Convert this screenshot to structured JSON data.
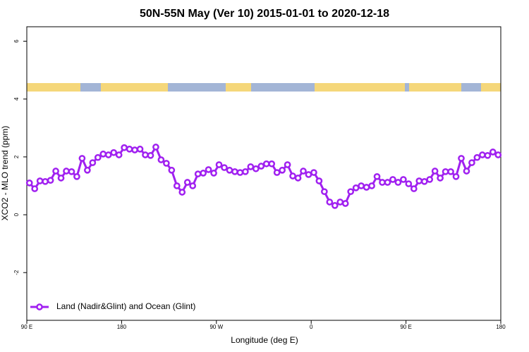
{
  "chart_data": {
    "type": "line",
    "title": "50N-55N May (Ver 10)   2015-01-01 to 2020-12-18",
    "x_label": "Longitude (deg E)",
    "y_label": "XCO2 - MLO trend (ppm)",
    "xlim": [
      90,
      540
    ],
    "xticks": [
      {
        "value": 90,
        "label": "90 E"
      },
      180,
      {
        "value": 270,
        "label": "90 W"
      },
      {
        "value": 360,
        "label": "0"
      },
      {
        "value": 450,
        "label": "90 E"
      },
      {
        "value": 540,
        "label": "180"
      }
    ],
    "ylim": [
      -3.65,
      6.5
    ],
    "yticks": [
      -2,
      0,
      2,
      4,
      6
    ],
    "grid": false,
    "legend": "bottom-left",
    "series": [
      {
        "name": "Land (Nadir&Glint) and Ocean (Glint)",
        "color": "#a020f0",
        "x": [
          92.5,
          97.5,
          102.5,
          107.5,
          112.5,
          117.5,
          122.5,
          127.5,
          132.5,
          137.5,
          142.5,
          147.5,
          152.5,
          157.5,
          162.5,
          167.5,
          172.5,
          177.5,
          182.5,
          187.5,
          192.5,
          197.5,
          202.5,
          207.5,
          212.5,
          217.5,
          222.5,
          227.5,
          232.5,
          237.5,
          242.5,
          247.5,
          252.5,
          257.5,
          262.5,
          267.5,
          272.5,
          277.5,
          282.5,
          287.5,
          292.5,
          297.5,
          302.5,
          307.5,
          312.5,
          317.5,
          322.5,
          327.5,
          332.5,
          337.5,
          342.5,
          347.5,
          352.5,
          357.5,
          362.5,
          367.5,
          372.5,
          377.5,
          382.5,
          387.5,
          392.5,
          397.5,
          402.5,
          407.5,
          412.5,
          417.5,
          422.5,
          427.5,
          432.5,
          437.5,
          442.5,
          447.5,
          452.5,
          457.5,
          462.5,
          467.5,
          472.5,
          477.5,
          482.5,
          487.5,
          492.5,
          497.5,
          502.5,
          507.5,
          512.5,
          517.5,
          522.5,
          527.5,
          532.5,
          537.5
        ],
        "values": [
          1.1,
          0.9,
          1.17,
          1.15,
          1.19,
          1.51,
          1.27,
          1.51,
          1.49,
          1.32,
          1.95,
          1.54,
          1.8,
          1.98,
          2.1,
          2.07,
          2.15,
          2.07,
          2.32,
          2.27,
          2.24,
          2.27,
          2.07,
          2.05,
          2.34,
          1.9,
          1.78,
          1.54,
          1.0,
          0.78,
          1.12,
          1.0,
          1.41,
          1.44,
          1.56,
          1.44,
          1.73,
          1.63,
          1.54,
          1.49,
          1.46,
          1.49,
          1.66,
          1.59,
          1.68,
          1.76,
          1.76,
          1.46,
          1.54,
          1.73,
          1.34,
          1.27,
          1.51,
          1.39,
          1.46,
          1.17,
          0.8,
          0.44,
          0.32,
          0.44,
          0.39,
          0.8,
          0.93,
          1.0,
          0.95,
          1.0,
          1.32,
          1.12,
          1.12,
          1.22,
          1.12,
          1.22,
          1.07,
          0.9,
          1.17,
          1.15,
          1.22,
          1.51,
          1.27,
          1.49,
          1.49,
          1.32,
          1.95,
          1.51,
          1.8,
          1.98,
          2.07,
          2.05,
          2.17,
          2.07
        ]
      }
    ]
  }
}
